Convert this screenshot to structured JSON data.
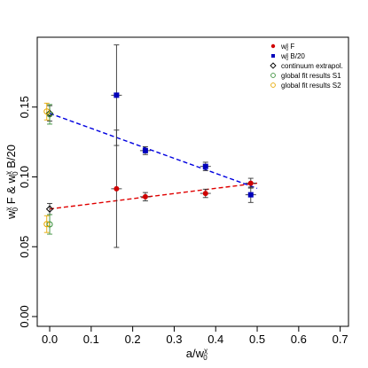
{
  "chart_data": {
    "type": "scatter",
    "xlabel": "a/w",
    "xlabel_sup": "χ",
    "xlabel_sub": "0",
    "ylabel_parts": [
      "w",
      "χ",
      "0",
      " F & w",
      "χ",
      "0",
      " B/20"
    ],
    "xlim": [
      -0.03,
      0.72
    ],
    "ylim": [
      -0.007,
      0.2
    ],
    "xticks": [
      0.0,
      0.1,
      0.2,
      0.3,
      0.4,
      0.5,
      0.6,
      0.7
    ],
    "xtick_labels": [
      "0.0",
      "0.1",
      "0.2",
      "0.3",
      "0.4",
      "0.5",
      "0.6",
      "0.7"
    ],
    "yticks": [
      0.0,
      0.05,
      0.1,
      0.15
    ],
    "ytick_labels": [
      "0.00",
      "0.05",
      "0.10",
      "0.15"
    ],
    "legend_position": "top-right",
    "series": [
      {
        "name": "w₀^χ F",
        "legend_main": "w",
        "legend_sup": "χ",
        "legend_sub": "0",
        "legend_tail": " F",
        "marker": "circle-filled",
        "color": "#d00000",
        "points": [
          {
            "x": 0.161,
            "y": 0.0915,
            "yerr": 0.042
          },
          {
            "x": 0.2305,
            "y": 0.0858,
            "yerr": 0.003
          },
          {
            "x": 0.3755,
            "y": 0.0882,
            "yerr": 0.003
          },
          {
            "x": 0.4845,
            "y": 0.0955,
            "yerr": 0.0035
          }
        ]
      },
      {
        "name": "w₀^χ B/20",
        "legend_main": "w",
        "legend_sup": "χ",
        "legend_sub": "0",
        "legend_tail": " B/20",
        "marker": "square-filled",
        "color": "#0000bb",
        "points": [
          {
            "x": 0.161,
            "y": 0.1585,
            "yerr": 0.036
          },
          {
            "x": 0.2305,
            "y": 0.1188,
            "yerr": 0.0028
          },
          {
            "x": 0.3755,
            "y": 0.1075,
            "yerr": 0.003
          },
          {
            "x": 0.4845,
            "y": 0.0872,
            "yerr": 0.0055
          }
        ]
      },
      {
        "name": "continuum extrapol.",
        "legend_main": "continuum extrapol.",
        "marker": "diamond-open",
        "color": "#000000",
        "points": [
          {
            "x": 0.0,
            "y": 0.077,
            "yerr": 0.004
          },
          {
            "x": 0.0,
            "y": 0.1455,
            "yerr": 0.0055
          }
        ]
      },
      {
        "name": "global fit results S1",
        "legend_main": "global fit results S1",
        "marker": "circle-open",
        "color": "#3a8f3a",
        "points": [
          {
            "x": 0.0,
            "y": 0.066,
            "yerr": 0.007
          },
          {
            "x": 0.0,
            "y": 0.1448,
            "yerr": 0.007
          }
        ]
      },
      {
        "name": "global fit results S2",
        "legend_main": "global fit results S2",
        "marker": "circle-open",
        "color": "#e6a800",
        "points": [
          {
            "x": -0.007,
            "y": 0.0662,
            "yerr": 0.006
          },
          {
            "x": -0.007,
            "y": 0.1468,
            "yerr": 0.006
          }
        ]
      }
    ],
    "fit_lines": [
      {
        "color": "#e00000",
        "dash": "dashed",
        "points": [
          [
            0.0,
            0.077
          ],
          [
            0.5,
            0.0955
          ]
        ]
      },
      {
        "color": "#0000e0",
        "dash": "dashed",
        "points": [
          [
            0.0,
            0.1455
          ],
          [
            0.5,
            0.0918
          ]
        ]
      }
    ]
  }
}
